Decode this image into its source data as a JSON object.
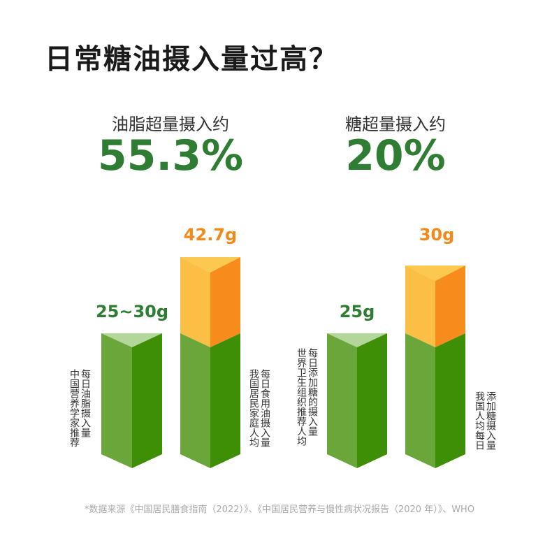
{
  "title": "日常糖油摄入量过高？",
  "panels": [
    {
      "heading": "油脂超量摄入约",
      "percent": "55.3%",
      "bars": [
        {
          "label": "25~30g",
          "caption": [
            "中国营养学家推荐",
            "每日油脂摄入量"
          ]
        },
        {
          "label": "42.7g",
          "caption": [
            "我国居民家庭人均",
            "每日食用油摄入量"
          ]
        }
      ]
    },
    {
      "heading": "糖超量摄入约",
      "percent": "20%",
      "bars": [
        {
          "label": "25g",
          "caption": [
            "世界卫生组织推荐人均",
            "每日添加糖的摄入量"
          ]
        },
        {
          "label": "30g",
          "caption": [
            "我国人均每日",
            "添加糖摄入量"
          ]
        }
      ]
    }
  ],
  "source": "*数据来源《中国居民膳食指南（2022）》、《中国居民营养与慢性病状况报告（2020 年）》、WHO"
}
